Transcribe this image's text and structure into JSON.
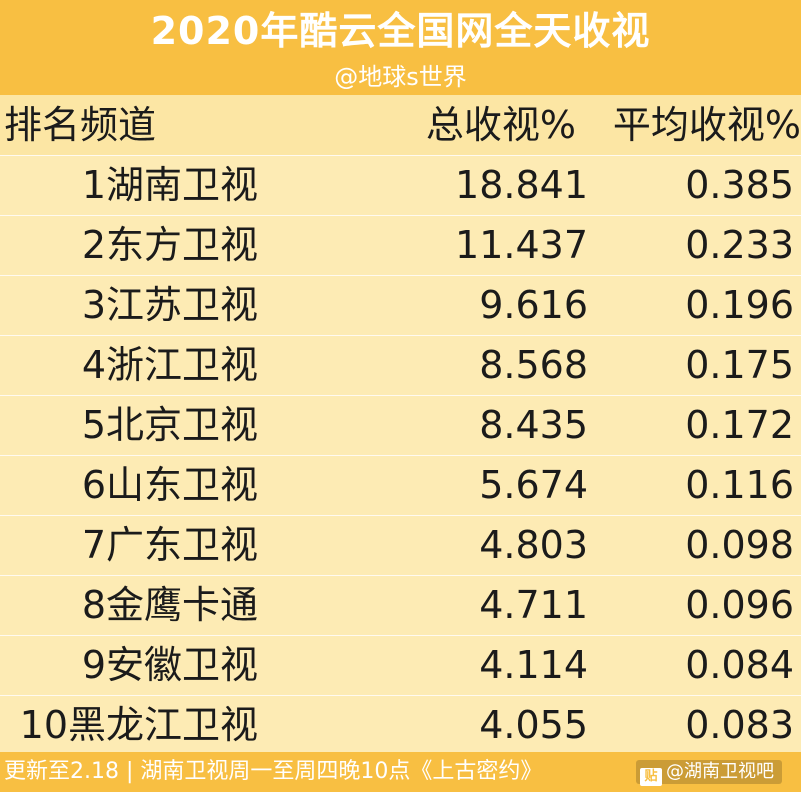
{
  "header": {
    "title": "2020年酷云全国网全天收视",
    "subtitle": "@地球s世界"
  },
  "columns": {
    "rank_channel": "排名频道",
    "total": "总收视%",
    "average": "平均收视%"
  },
  "rows": [
    {
      "name": "1湖南卫视",
      "total": "18.841",
      "average": "0.385"
    },
    {
      "name": "2东方卫视",
      "total": "11.437",
      "average": "0.233"
    },
    {
      "name": "3江苏卫视",
      "total": "9.616",
      "average": "0.196"
    },
    {
      "name": "4浙江卫视",
      "total": "8.568",
      "average": "0.175"
    },
    {
      "name": "5北京卫视",
      "total": "8.435",
      "average": "0.172"
    },
    {
      "name": "6山东卫视",
      "total": "5.674",
      "average": "0.116"
    },
    {
      "name": "7广东卫视",
      "total": "4.803",
      "average": "0.098"
    },
    {
      "name": "8金鹰卡通",
      "total": "4.711",
      "average": "0.096"
    },
    {
      "name": "9安徽卫视",
      "total": "4.114",
      "average": "0.084"
    },
    {
      "name": "10黑龙江卫视",
      "total": "4.055",
      "average": "0.083"
    }
  ],
  "footer": {
    "text": "更新至2.18 | 湖南卫视周一至周四晚10点《上古密约》",
    "watermark": "@湖南卫视吧"
  },
  "colors": {
    "header_bg": "#f8bf42",
    "table_bg": "#fdebb4",
    "text": "#1b1b1b"
  }
}
